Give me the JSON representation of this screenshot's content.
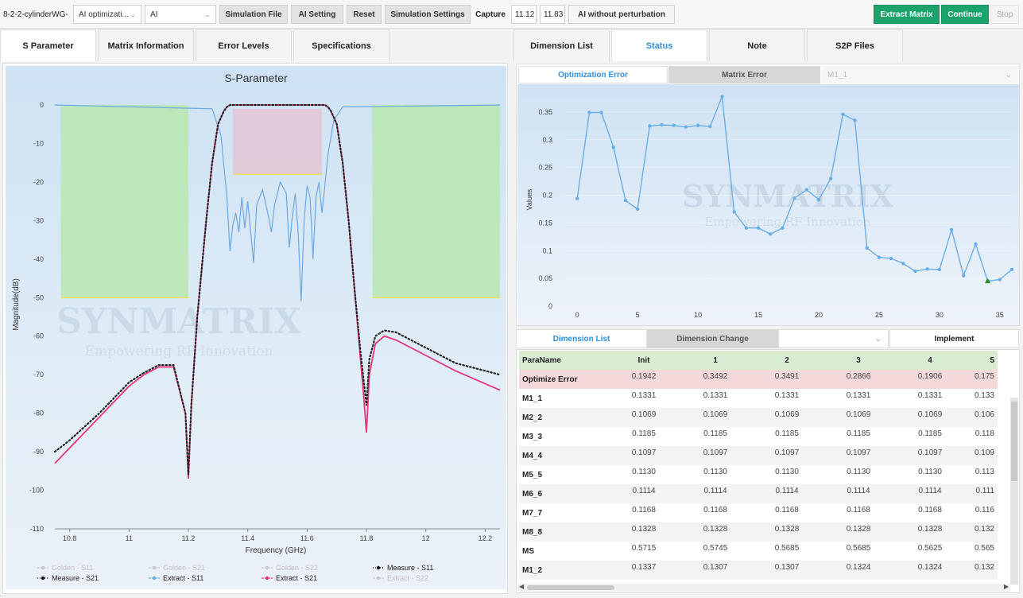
{
  "toolbar": {
    "project": "8-2-2-cylinderWG-",
    "mode_select": "AI optimizati...",
    "engine_select": "AI",
    "simulation_file": "Simulation File",
    "ai_setting": "AI Setting",
    "reset": "Reset",
    "simulation_settings": "Simulation Settings",
    "capture_label": "Capture",
    "capture_from": "11.12",
    "capture_to": "11.83",
    "ai_without_perturbation": "AI without perturbation",
    "extract_matrix": "Extract Matrix",
    "continue": "Continue",
    "stop": "Stop",
    "accent_color": "#1aa36b"
  },
  "left_tabs": [
    "S Parameter",
    "Matrix Information",
    "Error Levels",
    "Specifications"
  ],
  "right_tabs": [
    "Dimension List",
    "Status",
    "Note",
    "S2P Files"
  ],
  "status_subtabs": {
    "optimization_error": "Optimization Error",
    "matrix_error": "Matrix Error",
    "element_select": "M1_1"
  },
  "watermark": {
    "brand": "SYNMATRIX",
    "tagline": "Empowering RF Innovation"
  },
  "sparam_chart": {
    "chart_data": {
      "type": "line",
      "title": "S-Parameter",
      "xlabel": "Frequency (GHz)",
      "ylabel": "Magnitude(dB)",
      "xlim": [
        10.75,
        12.25
      ],
      "ylim": [
        -110,
        0
      ],
      "x_ticks": [
        "10.8",
        "11",
        "11.2",
        "11.4",
        "11.6",
        "11.8",
        "12",
        "12.2"
      ],
      "y_ticks": [
        "0",
        "-10",
        "-20",
        "-30",
        "-40",
        "-50",
        "-60",
        "-70",
        "-80",
        "-90",
        "-100",
        "-110"
      ],
      "mask_regions": [
        {
          "x": [
            10.77,
            11.2
          ],
          "y": [
            -50,
            0
          ],
          "color": "#b9e7b0"
        },
        {
          "x": [
            11.82,
            12.25
          ],
          "y": [
            -50,
            0
          ],
          "color": "#b9e7b0"
        },
        {
          "x": [
            11.35,
            11.65
          ],
          "y": [
            -18,
            -1
          ],
          "color": "#e4c4d4"
        }
      ],
      "series": [
        {
          "name": "Extract - S11",
          "color": "#6ea8e0",
          "x": [
            10.75,
            11.28,
            11.31,
            11.33,
            11.34,
            11.35,
            11.36,
            11.37,
            11.38,
            11.39,
            11.4,
            11.41,
            11.42,
            11.43,
            11.45,
            11.47,
            11.48,
            11.49,
            11.51,
            11.53,
            11.54,
            11.55,
            11.56,
            11.57,
            11.58,
            11.59,
            11.6,
            11.61,
            11.62,
            11.63,
            11.64,
            11.65,
            11.66,
            11.67,
            11.69,
            11.72,
            12.25
          ],
          "y": [
            0,
            -1,
            -8,
            -24,
            -38,
            -31,
            -28,
            -33,
            -24,
            -32,
            -25,
            -33,
            -41,
            -26,
            -22,
            -29,
            -33,
            -26,
            -20,
            -23,
            -37,
            -29,
            -23,
            -33,
            -51,
            -30,
            -21,
            -24,
            -40,
            -24,
            -20,
            -28,
            -21,
            -13,
            -4,
            -0.5,
            0
          ]
        },
        {
          "name": "Extract - S21",
          "color": "#e8357a",
          "x": [
            10.75,
            10.8,
            10.9,
            11.0,
            11.05,
            11.1,
            11.15,
            11.19,
            11.2,
            11.21,
            11.23,
            11.26,
            11.28,
            11.3,
            11.32,
            11.33,
            11.34,
            11.5,
            11.66,
            11.67,
            11.68,
            11.7,
            11.72,
            11.74,
            11.76,
            11.78,
            11.79,
            11.8,
            11.81,
            11.83,
            11.86,
            11.9,
            12.0,
            12.1,
            12.25
          ],
          "y": [
            -93,
            -89,
            -81,
            -73,
            -70,
            -68,
            -68,
            -80,
            -97,
            -78,
            -55,
            -30,
            -15,
            -5,
            -1.5,
            -0.5,
            0,
            0,
            0,
            -0.5,
            -1.5,
            -5,
            -15,
            -30,
            -48,
            -66,
            -75,
            -85,
            -70,
            -62,
            -60,
            -61,
            -65,
            -69,
            -74
          ]
        },
        {
          "name": "Measure - S21",
          "color": "#222222",
          "dotted": true,
          "x": [
            10.75,
            10.8,
            10.9,
            11.0,
            11.05,
            11.1,
            11.15,
            11.19,
            11.2,
            11.21,
            11.23,
            11.26,
            11.28,
            11.3,
            11.32,
            11.33,
            11.34,
            11.5,
            11.66,
            11.67,
            11.68,
            11.7,
            11.72,
            11.74,
            11.76,
            11.78,
            11.8,
            11.81,
            11.83,
            11.86,
            11.9,
            12.0,
            12.1,
            12.25
          ],
          "y": [
            -90,
            -87,
            -80,
            -72,
            -69.5,
            -67.5,
            -67.5,
            -80,
            -96,
            -78,
            -55,
            -30,
            -15,
            -5,
            -1.5,
            -0.5,
            0,
            0,
            0,
            -0.5,
            -1.5,
            -5,
            -15,
            -30,
            -48,
            -64,
            -78,
            -66,
            -60,
            -58.5,
            -59,
            -63,
            -67,
            -70
          ]
        }
      ],
      "legend": [
        {
          "label": "Golden - S11",
          "color": "#c8c8c8",
          "disabled": true
        },
        {
          "label": "Golden - S21",
          "color": "#c8c8c8",
          "disabled": true
        },
        {
          "label": "Golden - S22",
          "color": "#c8c8c8",
          "disabled": true
        },
        {
          "label": "Measure - S11",
          "color": "#111111",
          "disabled": false
        },
        {
          "label": "Measure - S21",
          "color": "#111111",
          "disabled": false
        },
        {
          "label": "Extract - S11",
          "color": "#6ea8e0",
          "disabled": false
        },
        {
          "label": "Extract - S21",
          "color": "#e8357a",
          "disabled": false
        },
        {
          "label": "Extract - S22",
          "color": "#c8c8c8",
          "disabled": true
        }
      ]
    }
  },
  "opt_chart": {
    "chart_data": {
      "type": "line",
      "xlabel": "",
      "ylabel": "Values",
      "xlim": [
        -1,
        36
      ],
      "ylim": [
        0,
        0.38
      ],
      "x_ticks": [
        "0",
        "5",
        "10",
        "15",
        "20",
        "25",
        "30",
        "35"
      ],
      "y_ticks": [
        "0",
        "0.05",
        "0.1",
        "0.15",
        "0.2",
        "0.25",
        "0.3",
        "0.35"
      ],
      "series": [
        {
          "color": "#6aaee8",
          "x": [
            0,
            1,
            2,
            3,
            4,
            5,
            6,
            7,
            8,
            9,
            10,
            11,
            12,
            13,
            14,
            15,
            16,
            17,
            18,
            19,
            20,
            21,
            22,
            23,
            24,
            25,
            26,
            27,
            28,
            29,
            30,
            31,
            32,
            33,
            34,
            35,
            36
          ],
          "y": [
            0.1942,
            0.3492,
            0.3491,
            0.2866,
            0.1906,
            0.175,
            0.325,
            0.327,
            0.326,
            0.323,
            0.326,
            0.324,
            0.378,
            0.17,
            0.141,
            0.141,
            0.13,
            0.141,
            0.195,
            0.21,
            0.192,
            0.23,
            0.346,
            0.335,
            0.105,
            0.088,
            0.086,
            0.077,
            0.063,
            0.067,
            0.066,
            0.138,
            0.055,
            0.112,
            0.045,
            0.048,
            0.066
          ]
        }
      ],
      "best_point": {
        "x": 34,
        "y": 0.045,
        "color": "#2a8a2a"
      }
    }
  },
  "dim_tabs": {
    "dimension_list": "Dimension List",
    "dimension_change": "Dimension Change",
    "implement": "Implement"
  },
  "table": {
    "headers": [
      "ParaName",
      "Init",
      "1",
      "2",
      "3",
      "4",
      "5"
    ],
    "rows": [
      {
        "name": "Optimize Error",
        "values": [
          "0.1942",
          "0.3492",
          "0.3491",
          "0.2866",
          "0.1906",
          "0.175"
        ]
      },
      {
        "name": "M1_1",
        "values": [
          "0.1331",
          "0.1331",
          "0.1331",
          "0.1331",
          "0.1331",
          "0.133"
        ]
      },
      {
        "name": "M2_2",
        "values": [
          "0.1069",
          "0.1069",
          "0.1069",
          "0.1069",
          "0.1069",
          "0.106"
        ]
      },
      {
        "name": "M3_3",
        "values": [
          "0.1185",
          "0.1185",
          "0.1185",
          "0.1185",
          "0.1185",
          "0.118"
        ]
      },
      {
        "name": "M4_4",
        "values": [
          "0.1097",
          "0.1097",
          "0.1097",
          "0.1097",
          "0.1097",
          "0.109"
        ]
      },
      {
        "name": "M5_5",
        "values": [
          "0.1130",
          "0.1130",
          "0.1130",
          "0.1130",
          "0.1130",
          "0.113"
        ]
      },
      {
        "name": "M6_6",
        "values": [
          "0.1114",
          "0.1114",
          "0.1114",
          "0.1114",
          "0.1114",
          "0.111"
        ]
      },
      {
        "name": "M7_7",
        "values": [
          "0.1168",
          "0.1168",
          "0.1168",
          "0.1168",
          "0.1168",
          "0.116"
        ]
      },
      {
        "name": "M8_8",
        "values": [
          "0.1328",
          "0.1328",
          "0.1328",
          "0.1328",
          "0.1328",
          "0.132"
        ]
      },
      {
        "name": "MS",
        "values": [
          "0.5715",
          "0.5745",
          "0.5685",
          "0.5685",
          "0.5625",
          "0.565"
        ]
      },
      {
        "name": "M1_2",
        "values": [
          "0.1337",
          "0.1307",
          "0.1307",
          "0.1324",
          "0.1324",
          "0.132"
        ]
      }
    ]
  }
}
